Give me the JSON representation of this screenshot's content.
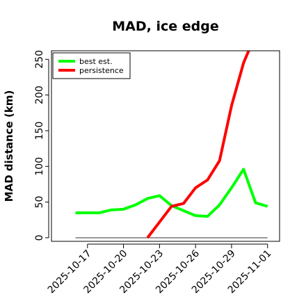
{
  "chart_data": {
    "type": "line",
    "title": "MAD, ice edge",
    "xlabel": "",
    "ylabel": "MAD distance (km)",
    "ylim": [
      -5,
      262
    ],
    "xlim": [
      "2025-10-14",
      "2025-11-02"
    ],
    "yticks": [
      0,
      50,
      100,
      150,
      200,
      250
    ],
    "xticks": [
      "2025-10-17",
      "2025-10-20",
      "2025-10-23",
      "2025-10-26",
      "2025-10-29",
      "2025-11-01"
    ],
    "grid": false,
    "legend": "top-left",
    "series": [
      {
        "name": "best est.",
        "color": "#00ff00",
        "points": [
          [
            "2025-10-16",
            35
          ],
          [
            "2025-10-17",
            35
          ],
          [
            "2025-10-18",
            35
          ],
          [
            "2025-10-19",
            39
          ],
          [
            "2025-10-20",
            40
          ],
          [
            "2025-10-21",
            46
          ],
          [
            "2025-10-22",
            55
          ],
          [
            "2025-10-23",
            59
          ],
          [
            "2025-10-24",
            45
          ],
          [
            "2025-10-25",
            38
          ],
          [
            "2025-10-26",
            31
          ],
          [
            "2025-10-27",
            30
          ],
          [
            "2025-10-28",
            46
          ],
          [
            "2025-10-29",
            70
          ],
          [
            "2025-10-30",
            96
          ],
          [
            "2025-10-31",
            49
          ],
          [
            "2025-11-01",
            44
          ]
        ]
      },
      {
        "name": "persistence",
        "color": "#ff0000",
        "points": [
          [
            "2025-10-22",
            0
          ],
          [
            "2025-10-23",
            22
          ],
          [
            "2025-10-24",
            44
          ],
          [
            "2025-10-25",
            48
          ],
          [
            "2025-10-26",
            70
          ],
          [
            "2025-10-27",
            81
          ],
          [
            "2025-10-28",
            108
          ],
          [
            "2025-10-29",
            185
          ],
          [
            "2025-10-30",
            245
          ],
          [
            "2025-10-31",
            285
          ]
        ]
      }
    ],
    "baseline": {
      "color": "#777777",
      "points": [
        [
          "2025-10-16",
          0
        ],
        [
          "2025-11-01",
          0
        ]
      ]
    }
  }
}
